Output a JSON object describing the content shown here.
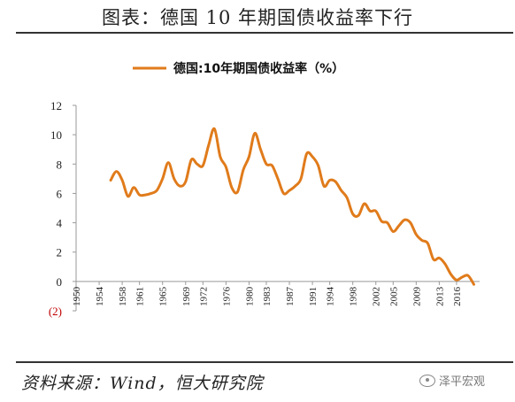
{
  "figure": {
    "title": "图表：德国 10 年期国债收益率下行",
    "source": "资料来源：Wind，恒大研究院",
    "watermark": "泽平宏观"
  },
  "chart_data": {
    "type": "line",
    "title": "",
    "xlabel": "",
    "ylabel": "",
    "legend": "top-center",
    "grid": false,
    "xlim": [
      1950,
      2020
    ],
    "ylim": [
      -2,
      12
    ],
    "yticks": [
      -2,
      0,
      2,
      4,
      6,
      8,
      10,
      12
    ],
    "ytick_labels": [
      "(2)",
      "0",
      "2",
      "4",
      "6",
      "8",
      "10",
      "12"
    ],
    "xticks": [
      1950,
      1954,
      1958,
      1961,
      1965,
      1969,
      1972,
      1976,
      1980,
      1983,
      1987,
      1991,
      1994,
      1998,
      2002,
      2005,
      2009,
      2013,
      2016
    ],
    "xtick_labels": [
      "1950",
      "1954",
      "1958",
      "1961",
      "1965",
      "1969",
      "1972",
      "1976",
      "1980",
      "1983",
      "1987",
      "1991",
      "1994",
      "1998",
      "2002",
      "2005",
      "2009",
      "2013",
      "2016"
    ],
    "colors": {
      "series": "#e07b1b",
      "axis": "#999999",
      "negative_label": "#c00000"
    },
    "series": [
      {
        "name": "德国:10年期国债收益率（%）",
        "x": [
          1956,
          1957,
          1958,
          1959,
          1960,
          1961,
          1962,
          1963,
          1964,
          1965,
          1966,
          1967,
          1968,
          1969,
          1970,
          1971,
          1972,
          1973,
          1974,
          1975,
          1976,
          1977,
          1978,
          1979,
          1980,
          1981,
          1982,
          1983,
          1984,
          1985,
          1986,
          1987,
          1988,
          1989,
          1990,
          1991,
          1992,
          1993,
          1994,
          1995,
          1996,
          1997,
          1998,
          1999,
          2000,
          2001,
          2002,
          2003,
          2004,
          2005,
          2006,
          2007,
          2008,
          2009,
          2010,
          2011,
          2012,
          2013,
          2014,
          2015,
          2016,
          2017,
          2018,
          2019
        ],
        "y": [
          6.9,
          7.5,
          6.9,
          5.8,
          6.4,
          5.9,
          5.9,
          6.0,
          6.2,
          7.0,
          8.1,
          7.0,
          6.5,
          6.8,
          8.3,
          8.0,
          7.9,
          9.3,
          10.4,
          8.5,
          7.8,
          6.4,
          6.1,
          7.6,
          8.5,
          10.1,
          9.0,
          8.0,
          7.9,
          7.0,
          6.0,
          6.2,
          6.5,
          7.0,
          8.7,
          8.5,
          7.9,
          6.5,
          6.9,
          6.8,
          6.2,
          5.7,
          4.6,
          4.5,
          5.3,
          4.8,
          4.8,
          4.1,
          4.0,
          3.4,
          3.8,
          4.2,
          4.0,
          3.2,
          2.8,
          2.6,
          1.5,
          1.6,
          1.2,
          0.5,
          0.1,
          0.3,
          0.4,
          -0.2
        ]
      }
    ]
  }
}
